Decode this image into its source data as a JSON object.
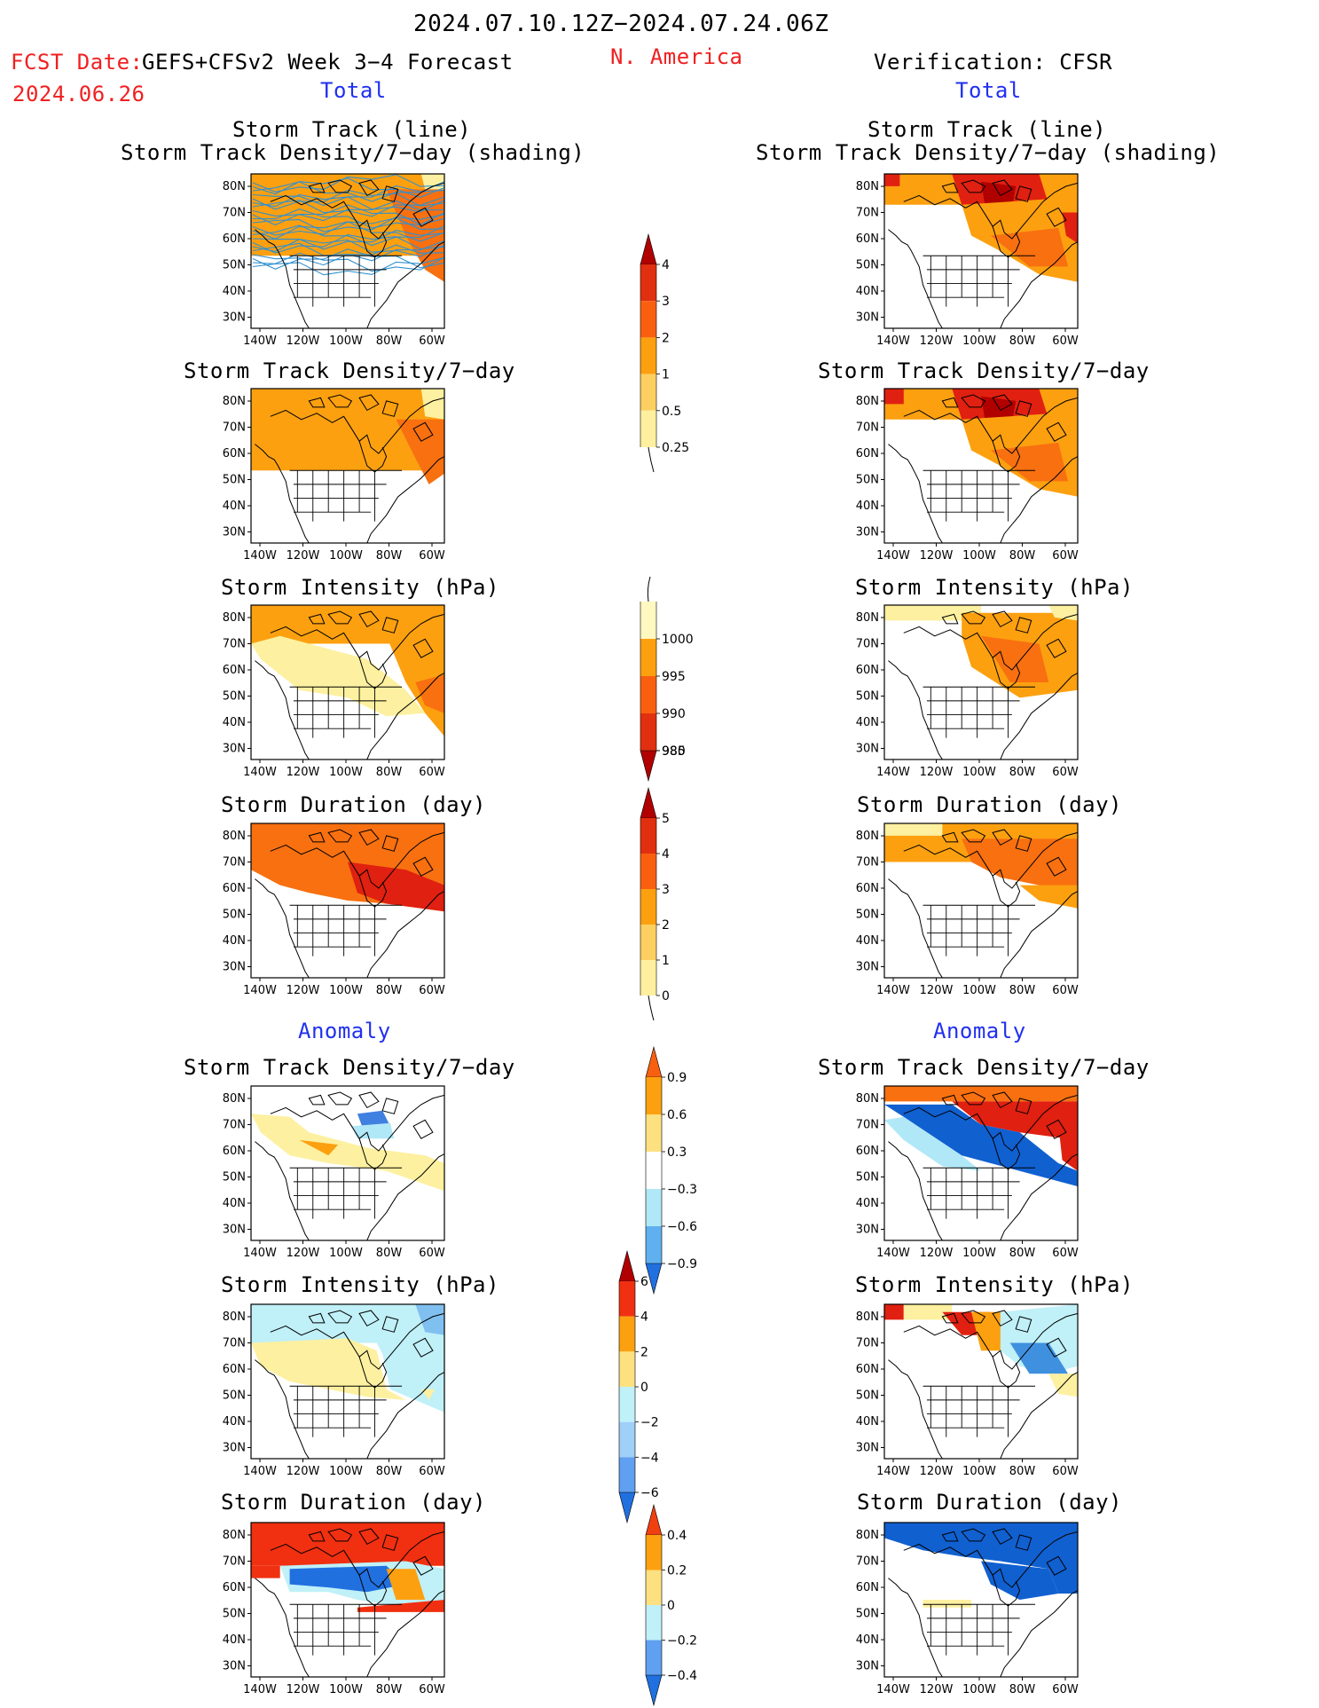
{
  "header": {
    "date_range": "2024.07.10.12Z−2024.07.24.06Z",
    "fcst_date_label": "FCST Date:",
    "forecast_name": "GEFS+CFSv2 Week 3−4 Forecast",
    "fcst_date": "2024.06.26",
    "region": "N. America",
    "verification": "Verification: CFSR"
  },
  "sections": {
    "total_left": "Total",
    "total_right": "Total",
    "anomaly_left": "Anomaly",
    "anomaly_right": "Anomaly"
  },
  "panel_titles": {
    "track_line": "Storm Track (line)",
    "track_shading": "Storm Track Density/7−day (shading)",
    "density": "Storm Track Density/7−day",
    "intensity": "Storm Intensity (hPa)",
    "duration": "Storm Duration (day)"
  },
  "axes": {
    "lat_ticks": [
      "80N",
      "70N",
      "60N",
      "50N",
      "40N",
      "30N"
    ],
    "lon_ticks": [
      "140W",
      "120W",
      "100W",
      "80W",
      "60W"
    ]
  },
  "colorbars": {
    "total_density": {
      "labels": [
        "4",
        "3",
        "2",
        "1",
        "0.5",
        "0.25"
      ],
      "colors": [
        "#b00000",
        "#e03010",
        "#f86010",
        "#fca010",
        "#fcd060",
        "#fff0a0"
      ]
    },
    "total_intensity": {
      "labels": [
        "1000",
        "995",
        "990",
        "985",
        "980"
      ],
      "colors": [
        "#fff8c0",
        "#fca010",
        "#f86010",
        "#e03010",
        "#b00000"
      ]
    },
    "total_duration": {
      "labels": [
        "5",
        "4",
        "3",
        "2",
        "1",
        "0"
      ],
      "colors": [
        "#b00000",
        "#e03010",
        "#f86010",
        "#fca010",
        "#fcd060",
        "#fff0a0"
      ]
    },
    "anom_density": {
      "labels": [
        "0.9",
        "0.6",
        "0.3",
        "−0.3",
        "−0.6",
        "−0.9"
      ],
      "colors": [
        "#f86010",
        "#fca010",
        "#fde080",
        "#ffffff",
        "#b0e8f8",
        "#60b0f0",
        "#2070e0"
      ]
    },
    "anom_intensity": {
      "labels": [
        "6",
        "4",
        "2",
        "0",
        "−2",
        "−4",
        "−6"
      ],
      "colors": [
        "#b00000",
        "#f03010",
        "#fca010",
        "#fde080",
        "#c0f0f8",
        "#a0d0f8",
        "#60a0f0",
        "#2070e0"
      ]
    },
    "anom_duration": {
      "labels": [
        "0.4",
        "0.2",
        "0",
        "−0.2",
        "−0.4"
      ],
      "colors": [
        "#f04010",
        "#fca010",
        "#fde080",
        "#c0f0f8",
        "#60a0f0",
        "#2070e0"
      ]
    }
  },
  "palette": {
    "pale_yellow": "#fdf0a0",
    "orange": "#fca010",
    "dark_orange": "#f87010",
    "red": "#e02010",
    "dark_red": "#b00000",
    "light_blue": "#c0f0f8",
    "blue": "#2070e0",
    "track_line": "#3090d0"
  }
}
